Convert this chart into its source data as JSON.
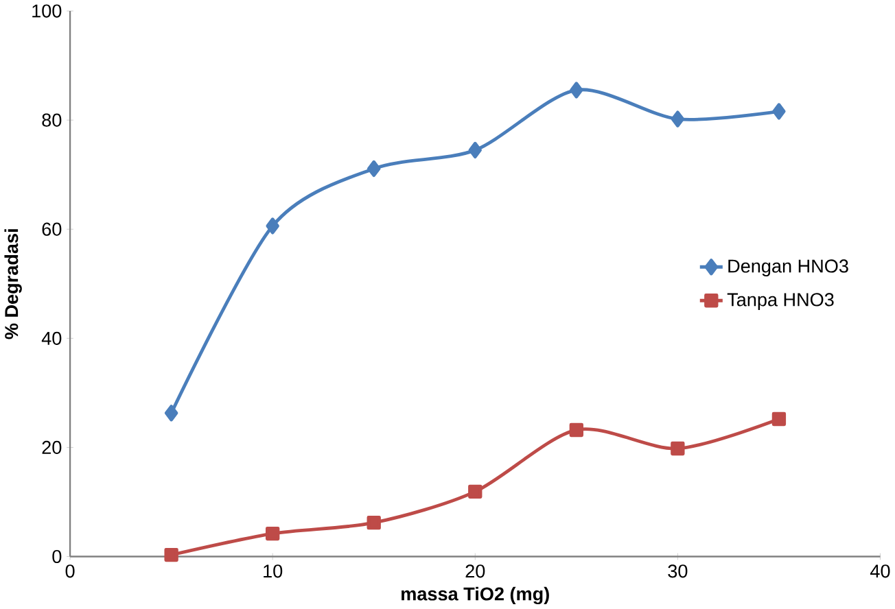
{
  "chart_data": {
    "type": "line",
    "xlabel": "massa TiO2 (mg)",
    "ylabel": "% Degradasi",
    "x": [
      5,
      10,
      15,
      20,
      25,
      30,
      35
    ],
    "series": [
      {
        "name": "Dengan HNO3",
        "color": "#4a7ebb",
        "marker": "diamond",
        "values": [
          26.3,
          60.6,
          71.1,
          74.5,
          85.5,
          80.2,
          81.6
        ]
      },
      {
        "name": "Tanpa HNO3",
        "color": "#be4b48",
        "marker": "square",
        "values": [
          0.3,
          4.2,
          6.2,
          11.9,
          23.2,
          19.8,
          25.2
        ]
      }
    ],
    "xlim": [
      0,
      40
    ],
    "xticks": [
      0,
      10,
      20,
      30,
      40
    ],
    "ylim": [
      0,
      100
    ],
    "yticks": [
      0,
      20,
      40,
      60,
      80,
      100
    ],
    "grid": false,
    "legend": "right"
  }
}
